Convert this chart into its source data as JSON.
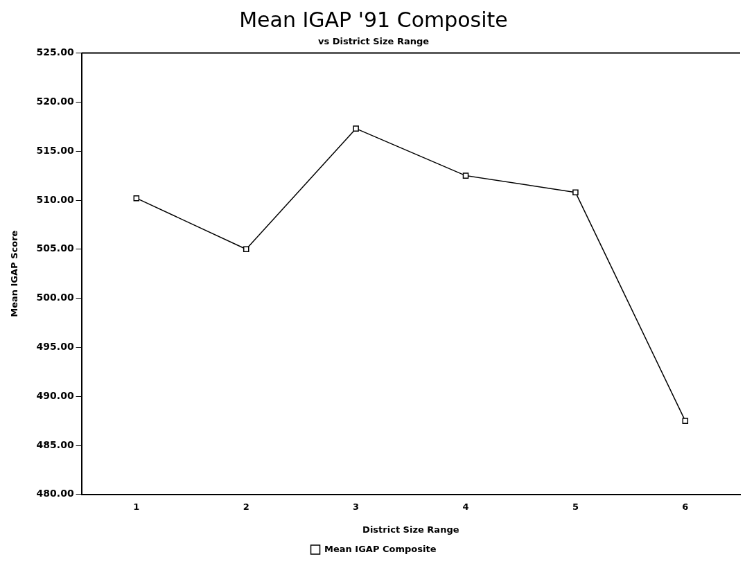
{
  "chart_data": {
    "type": "line",
    "title": "Mean IGAP '91 Composite",
    "subtitle": "vs District Size Range",
    "xlabel": "District Size Range",
    "ylabel": "Mean IGAP Score",
    "categories": [
      "1",
      "2",
      "3",
      "4",
      "5",
      "6"
    ],
    "series": [
      {
        "name": "Mean IGAP Composite",
        "color": "#000000",
        "values": [
          510.2,
          505.0,
          517.3,
          512.5,
          510.8,
          487.5
        ]
      }
    ],
    "ylim": [
      480,
      525
    ],
    "yticks": [
      {
        "value": 480,
        "label": "480.00"
      },
      {
        "value": 485,
        "label": "485.00"
      },
      {
        "value": 490,
        "label": "490.00"
      },
      {
        "value": 495,
        "label": "495.00"
      },
      {
        "value": 500,
        "label": "500.00"
      },
      {
        "value": 505,
        "label": "505.00"
      },
      {
        "value": 510,
        "label": "510.00"
      },
      {
        "value": 515,
        "label": "515.00"
      },
      {
        "value": 520,
        "label": "520.00"
      },
      {
        "value": 525,
        "label": "525.00"
      }
    ],
    "grid": false,
    "legend": "bottom",
    "marker": "square",
    "line_style": "solid"
  }
}
